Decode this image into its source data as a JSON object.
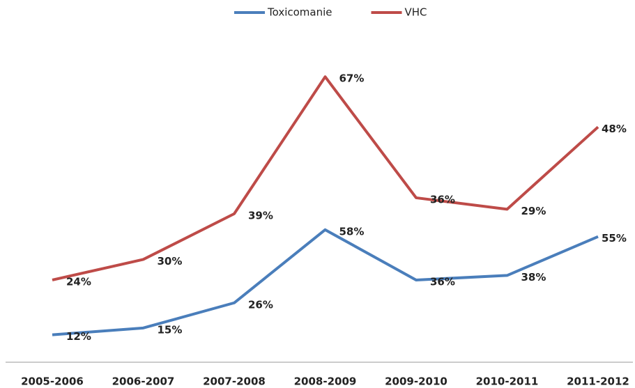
{
  "chart_data": {
    "type": "line",
    "stacked": true,
    "categories": [
      "2005-2006",
      "2006-2007",
      "2007-2008",
      "2008-2009",
      "2009-2010",
      "2010-2011",
      "2011-2012"
    ],
    "series": [
      {
        "name": "Toxicomanie",
        "color": "#4a7ebb",
        "values": [
          12,
          15,
          26,
          58,
          36,
          38,
          55
        ],
        "value_labels": [
          "12%",
          "15%",
          "26%",
          "58%",
          "36%",
          "38%",
          "55%"
        ]
      },
      {
        "name": "VHC",
        "color": "#be4b48",
        "values": [
          24,
          30,
          39,
          67,
          36,
          29,
          48
        ],
        "value_labels": [
          "24%",
          "30%",
          "39%",
          "67%",
          "36%",
          "29%",
          "48%"
        ]
      }
    ],
    "ylim": [
      0,
      140
    ],
    "legend": "top"
  }
}
